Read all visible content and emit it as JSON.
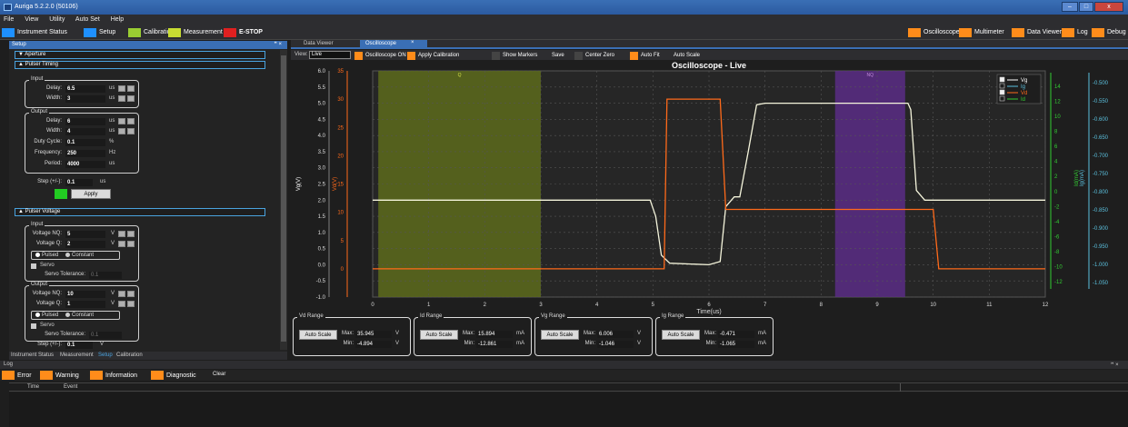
{
  "window": {
    "title": "Auriga 5.2.2.0 (50106)",
    "controls": [
      "–",
      "□",
      "x"
    ]
  },
  "menu": [
    "File",
    "View",
    "Utility",
    "Auto Set",
    "Help"
  ],
  "toolbar": {
    "left": [
      {
        "label": "Instrument Status",
        "color": "#1e90ff"
      },
      {
        "label": "Setup",
        "color": "#1e90ff"
      },
      {
        "label": "Calibration",
        "color": "#9acd32"
      },
      {
        "label": "Measurement",
        "color": "#9acd32"
      },
      {
        "label": "E-STOP",
        "color": "#e02020"
      }
    ],
    "right": [
      {
        "label": "Oscilloscope",
        "color": "#ff8c1a"
      },
      {
        "label": "Multimeter",
        "color": "#ff8c1a"
      },
      {
        "label": "Data Viewer",
        "color": "#ff8c1a"
      },
      {
        "label": "Log",
        "color": "#ff8c1a"
      },
      {
        "label": "Debug",
        "color": "#ff8c1a"
      }
    ]
  },
  "setup": {
    "header": "Setup",
    "header_controls": "ꟸ ×",
    "aperture": "Aperture",
    "pulser_timing": "Pulser Timing",
    "input": {
      "title": "Input",
      "delay_label": "Delay:",
      "delay": "6.5",
      "width_label": "Width:",
      "width": "3",
      "unit": "us"
    },
    "output": {
      "title": "Output",
      "delay_label": "Delay:",
      "delay": "6",
      "width_label": "Width:",
      "width": "4",
      "unit": "us",
      "duty_label": "Duty Cycle:",
      "duty": "0.1",
      "duty_unit": "%",
      "freq_label": "Frequency:",
      "freq": "250",
      "freq_unit": "Hz",
      "period_label": "Period:",
      "period": "4000",
      "period_unit": "us"
    },
    "step_label": "Step (+/-):",
    "step": "0.1",
    "step_unit": "us",
    "apply": "Apply",
    "pulser_voltage": "Pulser Voltage",
    "v_input": {
      "title": "Input",
      "nq_label": "Voltage NQ:",
      "nq": "5",
      "q_label": "Voltage Q:",
      "q": "2",
      "unit": "V",
      "pulsed": "Pulsed",
      "constant": "Constant",
      "servo": "Servo",
      "servo_tol_label": "Servo Tolerance:",
      "servo_tol": "0.1"
    },
    "v_output": {
      "title": "Output",
      "nq_label": "Voltage NQ:",
      "nq": "10",
      "q_label": "Voltage Q:",
      "q": "1",
      "unit": "V",
      "pulsed": "Pulsed",
      "constant": "Constant",
      "servo": "Servo",
      "servo_tol_label": "Servo Tolerance:",
      "servo_tol": "0.1"
    },
    "v_step_label": "Step (+/-):",
    "v_step": "0.1",
    "v_step_unit": "V"
  },
  "bottom_tabs": [
    "Instrument Status",
    "Measurement",
    "Setup",
    "Calibration"
  ],
  "doc_tabs": [
    "Data Viewer",
    "Oscilloscope"
  ],
  "doc_tab_close": "×",
  "scope_toolbar": {
    "view_label": "View:",
    "view_value": "Live",
    "buttons": [
      "Oscilloscope ON",
      "Apply Calibration",
      "Show Markers",
      "Save",
      "Center Zero",
      "Auto Fit",
      "Auto Scale"
    ]
  },
  "chart_data": {
    "type": "line",
    "title": "Oscilloscope - Live",
    "xlabel": "Time(us)",
    "xlim": [
      0,
      12
    ],
    "x_ticks": [
      "0",
      "1",
      "2",
      "3",
      "4",
      "5",
      "6",
      "7",
      "8",
      "9",
      "10",
      "11",
      "12"
    ],
    "axes": {
      "vg": {
        "label": "Vg(V)",
        "ticks": [
          "6.0",
          "5.5",
          "5.0",
          "4.5",
          "4.0",
          "3.5",
          "3.0",
          "2.5",
          "2.0",
          "1.5",
          "1.0",
          "0.5",
          "0.0",
          "-0.5",
          "-1.0"
        ],
        "range": [
          -1.0,
          6.0
        ],
        "color": "#ffffff"
      },
      "vd": {
        "label": "Vd(V)",
        "ticks": [
          "35",
          "30",
          "25",
          "20",
          "15",
          "10",
          "5",
          "0"
        ],
        "range": [
          -5,
          35
        ],
        "color": "#ff6a1a"
      },
      "id": {
        "label": "Id(mA)",
        "ticks": [
          "14",
          "12",
          "10",
          "8",
          "6",
          "4",
          "2",
          "0",
          "-2",
          "-4",
          "-6",
          "-8",
          "-10",
          "-12"
        ],
        "range": [
          -12.861,
          15.894
        ],
        "color": "#33cc33"
      },
      "ig": {
        "label": "Ig(mA)",
        "ticks": [
          "-0.500",
          "-0.550",
          "-0.600",
          "-0.650",
          "-0.700",
          "-0.750",
          "-0.800",
          "-0.850",
          "-0.900",
          "-0.950",
          "-1.000",
          "-1.050"
        ],
        "range": [
          -1.065,
          -0.471
        ],
        "color": "#5bc0de"
      }
    },
    "regions": [
      {
        "label": "Q",
        "x0": 0.1,
        "x1": 3.0,
        "color": "#5d6b1c"
      },
      {
        "label": "NQ",
        "x0": 8.25,
        "x1": 9.5,
        "color": "#5a2d86"
      }
    ],
    "legend": [
      {
        "name": "Vg",
        "checked": true,
        "color": "#ffffff"
      },
      {
        "name": "Ig",
        "checked": false,
        "color": "#5bc0de"
      },
      {
        "name": "Vd",
        "checked": true,
        "color": "#ff6a1a"
      },
      {
        "name": "Id",
        "checked": false,
        "color": "#33cc33"
      }
    ],
    "series": [
      {
        "name": "Vg",
        "axis": "vg",
        "points": [
          [
            0,
            2.0
          ],
          [
            4.95,
            2.0
          ],
          [
            5.05,
            1.5
          ],
          [
            5.15,
            0.3
          ],
          [
            5.3,
            0.05
          ],
          [
            6.0,
            0.0
          ],
          [
            6.2,
            0.1
          ],
          [
            6.3,
            1.8
          ],
          [
            6.45,
            2.1
          ],
          [
            6.55,
            2.1
          ],
          [
            6.7,
            3.5
          ],
          [
            6.85,
            4.95
          ],
          [
            7.0,
            5.0
          ],
          [
            9.55,
            5.0
          ],
          [
            9.6,
            4.8
          ],
          [
            9.7,
            2.3
          ],
          [
            9.85,
            2.0
          ],
          [
            12,
            2.0
          ]
        ]
      },
      {
        "name": "Vd",
        "axis": "vd",
        "points": [
          [
            0,
            0
          ],
          [
            5.2,
            0
          ],
          [
            5.25,
            30
          ],
          [
            6.2,
            30
          ],
          [
            6.3,
            10.5
          ],
          [
            10.0,
            10.5
          ],
          [
            10.1,
            0
          ],
          [
            12,
            0
          ]
        ]
      }
    ]
  },
  "ranges": [
    {
      "title": "Vd Range",
      "button": "Auto Scale",
      "max_label": "Max:",
      "max": "35.945",
      "min_label": "Min:",
      "min": "-4.894",
      "unit": "V"
    },
    {
      "title": "Id Range",
      "button": "Auto Scale",
      "max_label": "Max:",
      "max": "15.894",
      "min_label": "Min:",
      "min": "-12.861",
      "unit": "mA"
    },
    {
      "title": "Vg Range",
      "button": "Auto Scale",
      "max_label": "Max:",
      "max": "6.006",
      "min_label": "Min:",
      "min": "-1.046",
      "unit": "V"
    },
    {
      "title": "Ig Range",
      "button": "Auto Scale",
      "max_label": "Max:",
      "max": "-0.471",
      "min_label": "Min:",
      "min": "-1.065",
      "unit": "mA"
    }
  ],
  "log": {
    "header": "Log",
    "header_controls": "ꟸ ×",
    "filters": [
      {
        "label": "Error",
        "color": "#ff8c1a"
      },
      {
        "label": "Warning",
        "color": "#ff8c1a"
      },
      {
        "label": "Information",
        "color": "#ff8c1a"
      },
      {
        "label": "Diagnostic",
        "color": "#ff8c1a"
      }
    ],
    "clear": "Clear",
    "columns": [
      "Time",
      "Event"
    ]
  }
}
